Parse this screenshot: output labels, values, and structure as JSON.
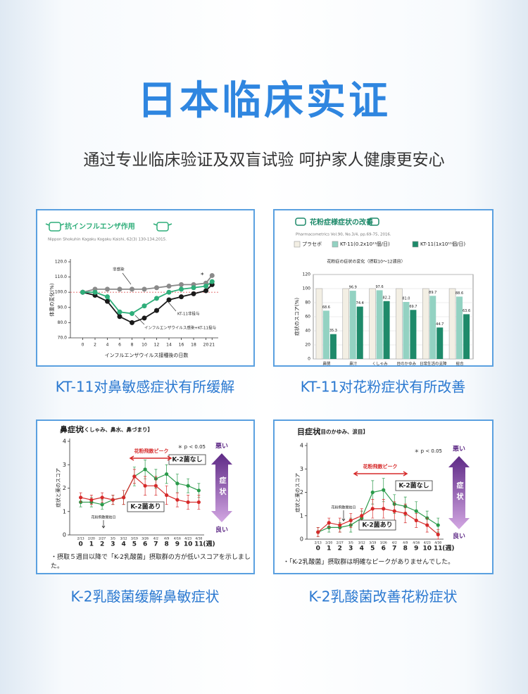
{
  "header": {
    "title": "日本临床实证",
    "subtitle": "通过专业临床验证及双盲试验 呵护家人健康更安心"
  },
  "chart_data": [
    {
      "type": "line",
      "title": "抗インフルエンザ作用",
      "subtitle": "Nippon Shokuhin Kagaku Kogaku Kaishi, 62(3) 130-134,2015.",
      "y_label": "体重の変化(%)",
      "x_label": "インフルエンザウイルス接種後の日数",
      "x": [
        0,
        2,
        4,
        6,
        8,
        10,
        12,
        14,
        16,
        18,
        20,
        21
      ],
      "xlim": [
        -2,
        22
      ],
      "xticks": [
        0,
        2,
        4,
        6,
        8,
        10,
        12,
        14,
        16,
        18,
        20,
        21
      ],
      "ylim": [
        70,
        120
      ],
      "yticks": [
        {
          "value": 70,
          "label": "70.0"
        },
        {
          "value": 80,
          "label": "80.0"
        },
        {
          "value": 90,
          "label": "90.0"
        },
        {
          "value": 100,
          "label": "100.0"
        },
        {
          "value": 110,
          "label": "110.0"
        },
        {
          "value": 120,
          "label": "120.0"
        }
      ],
      "reference_line": 100,
      "significance": "*",
      "series": [
        {
          "name": "非感染",
          "color": "#8a8a8a",
          "values": [
            100,
            102,
            102,
            102,
            102,
            102,
            103,
            104,
            105,
            105,
            106,
            111
          ]
        },
        {
          "name": "KT-11非投与",
          "color": "#1a1a1a",
          "values": [
            100,
            98,
            94,
            84,
            80,
            83,
            88,
            95,
            97,
            99,
            101,
            105
          ]
        },
        {
          "name": "インフルエンザウイルス感染+KT-11投与",
          "color": "#2fae7a",
          "values": [
            100,
            100,
            97,
            87,
            86,
            91,
            96,
            100,
            102,
            103,
            104,
            107
          ]
        }
      ]
    },
    {
      "type": "bar",
      "title": "花粉症様症状の改善",
      "subtitle": "Pharmacometrics Vol.90, No.3/4, pp.69-75, 2016.",
      "plot_title": "花粉症の症状の変化（摂取10〜12週目）",
      "y_label": "症状のスコア(%)",
      "categories": [
        "鼻閉",
        "鼻汁",
        "くしゃみ",
        "目のかゆみ",
        "日常生活の支障",
        "総合"
      ],
      "ylim": [
        0,
        120
      ],
      "yticks": [
        0,
        20,
        40,
        60,
        80,
        100,
        120
      ],
      "grid": true,
      "series": [
        {
          "name": "プラセボ",
          "color": "#f3efe4",
          "values": [
            100,
            100,
            100,
            100,
            100,
            100
          ]
        },
        {
          "name": "KT-11(0.2x10¹¹個/日)",
          "color": "#93d2c2",
          "values": [
            68.6,
            96.9,
            97.6,
            81.0,
            89.7,
            88.6
          ],
          "value_labels": [
            "68.6",
            "96.9",
            "97.6",
            "81.0",
            "89.7",
            "88.6"
          ]
        },
        {
          "name": "KT-11(1x10¹¹個/日)",
          "color": "#1e8a6a",
          "values": [
            35.3,
            74.4,
            82.2,
            69.7,
            44.7,
            63.6
          ],
          "value_labels": [
            "35.3",
            "74.4",
            "82.2",
            "69.7",
            "44.7",
            "63.6"
          ]
        }
      ]
    },
    {
      "type": "line",
      "title": "鼻症状",
      "subtitle": "【くしゃみ、鼻水、鼻づまり】",
      "y_label": "症状と薬のスコア",
      "categories": [
        "0",
        "1",
        "2",
        "3",
        "4",
        "5",
        "6",
        "7",
        "8",
        "9",
        "10",
        "11"
      ],
      "x_unit": "(週)",
      "dates": [
        "2/13",
        "2/20",
        "2/27",
        "3/5",
        "3/12",
        "3/19",
        "3/26",
        "4/2",
        "4/9",
        "4/16",
        "4/23",
        "4/30"
      ],
      "ylim": [
        0,
        4
      ],
      "yticks": [
        0,
        1,
        2,
        3,
        4
      ],
      "significance": "＊ p < 0.05",
      "peak_label": "花粉飛散ピーク",
      "start_label": "花粉飛散開始日",
      "scale_labels": {
        "top": "悪い",
        "middle": "症状",
        "bottom": "良い"
      },
      "footnote": "・摂取５週目以降で「K-2乳酸菌」摂取群の方が低いスコアを示しました。",
      "series": [
        {
          "name": "K-2菌なし",
          "color": "#2a9a4a",
          "values": [
            1.4,
            1.4,
            1.3,
            1.5,
            1.6,
            2.5,
            2.8,
            2.4,
            2.6,
            2.2,
            2.1,
            1.9
          ],
          "errors": [
            0.2,
            0.2,
            0.2,
            0.2,
            0.3,
            0.4,
            0.4,
            0.4,
            0.4,
            0.4,
            0.3,
            0.3
          ]
        },
        {
          "name": "K-2菌あり",
          "color": "#d62a2a",
          "values": [
            1.6,
            1.5,
            1.6,
            1.5,
            1.6,
            2.5,
            2.1,
            2.1,
            1.7,
            1.5,
            1.4,
            1.4
          ],
          "errors": [
            0.2,
            0.2,
            0.2,
            0.2,
            0.3,
            0.3,
            0.4,
            0.4,
            0.4,
            0.3,
            0.3,
            0.3
          ]
        }
      ]
    },
    {
      "type": "line",
      "title": "目症状",
      "subtitle": "【目のかゆみ、涙目】",
      "y_label": "症状と薬のスコア",
      "categories": [
        "0",
        "1",
        "2",
        "3",
        "4",
        "5",
        "6",
        "7",
        "8",
        "9",
        "10",
        "11"
      ],
      "x_unit": "(週)",
      "dates": [
        "2/13",
        "2/20",
        "2/27",
        "3/5",
        "3/12",
        "3/19",
        "3/26",
        "4/2",
        "4/9",
        "4/16",
        "4/23",
        "4/30"
      ],
      "ylim": [
        0,
        4
      ],
      "yticks": [
        0,
        1,
        2,
        3,
        4
      ],
      "significance": "＊ p < 0.05",
      "peak_label": "花粉飛散ピーク",
      "start_label": "花粉飛散開始日",
      "scale_labels": {
        "top": "悪い",
        "middle": "症状",
        "bottom": "良い"
      },
      "footnote": "・「K-2乳酸菌」摂取群は明確なピークがありませんでした。",
      "series": [
        {
          "name": "K-2菌なし",
          "color": "#2a9a4a",
          "values": [
            0.3,
            0.5,
            0.5,
            0.6,
            0.9,
            2.0,
            2.1,
            1.5,
            1.4,
            1.2,
            0.9,
            0.6
          ],
          "errors": [
            0.2,
            0.2,
            0.2,
            0.3,
            0.3,
            0.5,
            0.5,
            0.4,
            0.4,
            0.4,
            0.3,
            0.3
          ]
        },
        {
          "name": "K-2菌あり",
          "color": "#d62a2a",
          "values": [
            0.3,
            0.7,
            0.6,
            0.8,
            1.0,
            1.3,
            1.3,
            1.2,
            1.1,
            0.8,
            0.6,
            0.2
          ],
          "errors": [
            0.2,
            0.2,
            0.3,
            0.3,
            0.3,
            0.4,
            0.4,
            0.4,
            0.4,
            0.3,
            0.3,
            0.2
          ]
        }
      ]
    }
  ],
  "captions": [
    "KT-11对鼻敏感症状有所缓解",
    "KT-11对花粉症状有所改善",
    "K-2乳酸菌缓解鼻敏症状",
    "K-2乳酸菌改善花粉症状"
  ]
}
